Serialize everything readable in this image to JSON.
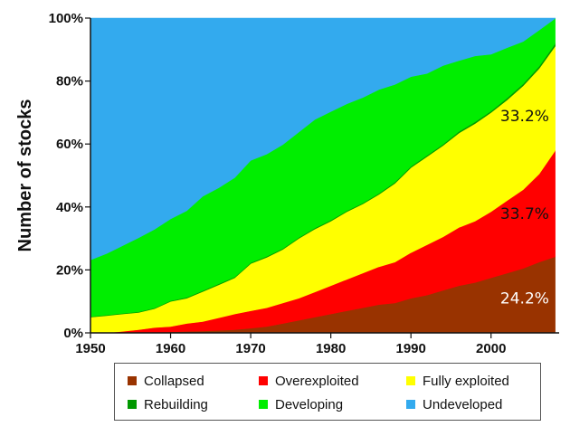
{
  "chart_data": {
    "type": "area",
    "stacked": true,
    "ylabel": "Number of stocks",
    "xlabel": "",
    "x_ticks": [
      "1950",
      "1960",
      "1970",
      "1980",
      "1990",
      "2000"
    ],
    "y_ticks": [
      "0%",
      "20%",
      "40%",
      "60%",
      "80%",
      "100%"
    ],
    "xlim": [
      1950,
      2008.5
    ],
    "ylim": [
      0,
      100
    ],
    "x": [
      1950,
      1952,
      1954,
      1956,
      1958,
      1960,
      1962,
      1964,
      1966,
      1968,
      1970,
      1972,
      1974,
      1976,
      1978,
      1980,
      1982,
      1984,
      1986,
      1988,
      1990,
      1992,
      1994,
      1996,
      1998,
      2000,
      2002,
      2004,
      2006,
      2008
    ],
    "series": [
      {
        "name": "Collapsed",
        "color": "#993300",
        "values": [
          0,
          0,
          0,
          0,
          0.2,
          0.3,
          0.5,
          0.6,
          0.8,
          1,
          1.5,
          2,
          3,
          4,
          5,
          6,
          7,
          8,
          9,
          9.5,
          11,
          12,
          13.5,
          15,
          16,
          17.5,
          19,
          20.5,
          22.5,
          24.2
        ]
      },
      {
        "name": "Overexploited",
        "color": "#ff0000",
        "values": [
          0,
          0,
          0.5,
          1,
          1.5,
          1.7,
          2.5,
          3,
          4,
          5,
          5.5,
          6,
          6.5,
          7,
          8,
          9,
          10,
          11,
          12,
          13,
          14.5,
          16,
          17,
          18.5,
          19.5,
          21,
          23,
          25,
          28,
          33.7
        ]
      },
      {
        "name": "Fully exploited",
        "color": "#ffff00",
        "values": [
          5,
          5.5,
          5.5,
          5.5,
          6,
          8,
          8,
          9.5,
          10.5,
          11.5,
          15,
          16,
          17,
          19,
          20,
          20.5,
          21.5,
          22,
          23,
          25,
          27,
          28,
          29,
          30,
          31,
          31.5,
          32,
          33,
          33.5,
          33.2
        ]
      },
      {
        "name": "Rebuilding",
        "color": "#009900",
        "values": [
          0.2,
          0.2,
          0.2,
          0.2,
          0.2,
          0.2,
          0.3,
          0.3,
          0.3,
          0.3,
          0.3,
          0.3,
          0.3,
          0.3,
          0.3,
          0.3,
          0.3,
          0.3,
          0.3,
          0.4,
          0.4,
          0.4,
          0.4,
          0.5,
          0.5,
          0.5,
          0.6,
          0.6,
          0.7,
          0.8
        ]
      },
      {
        "name": "Developing",
        "color": "#00ee00",
        "values": [
          18,
          19.5,
          21.5,
          23.5,
          25,
          26,
          27.5,
          30,
          30.5,
          31.5,
          32.5,
          32.5,
          33,
          33.5,
          34.5,
          34.5,
          34,
          33.5,
          33,
          31,
          28.5,
          26,
          25,
          22.5,
          21,
          18,
          16,
          13.5,
          11.5,
          8
        ]
      },
      {
        "name": "Undeveloped",
        "color": "#33aaee",
        "values": [
          76.8,
          74.8,
          72.3,
          69.8,
          67.1,
          63.8,
          61.2,
          56.6,
          53.9,
          50.7,
          45.2,
          43.2,
          40.2,
          36.2,
          32.2,
          29.7,
          27.2,
          25.2,
          22.7,
          21.1,
          18.6,
          17.6,
          15.1,
          13.5,
          12,
          11.5,
          9.4,
          7.4,
          3.8,
          0.1
        ]
      }
    ],
    "annotations": [
      {
        "text": "33.2%",
        "x": 2004.2,
        "y": 69,
        "color": "#111111"
      },
      {
        "text": "33.7%",
        "x": 2004.2,
        "y": 38,
        "color": "#111111"
      },
      {
        "text": "24.2%",
        "x": 2004.2,
        "y": 11,
        "color": "#ffffff"
      }
    ],
    "legend": {
      "position": "bottom",
      "items": [
        {
          "label": "Collapsed",
          "color": "#993300"
        },
        {
          "label": "Overexploited",
          "color": "#ff0000"
        },
        {
          "label": "Fully exploited",
          "color": "#ffff00"
        },
        {
          "label": "Rebuilding",
          "color": "#009900"
        },
        {
          "label": "Developing",
          "color": "#00ee00"
        },
        {
          "label": "Undeveloped",
          "color": "#33aaee"
        }
      ]
    }
  }
}
